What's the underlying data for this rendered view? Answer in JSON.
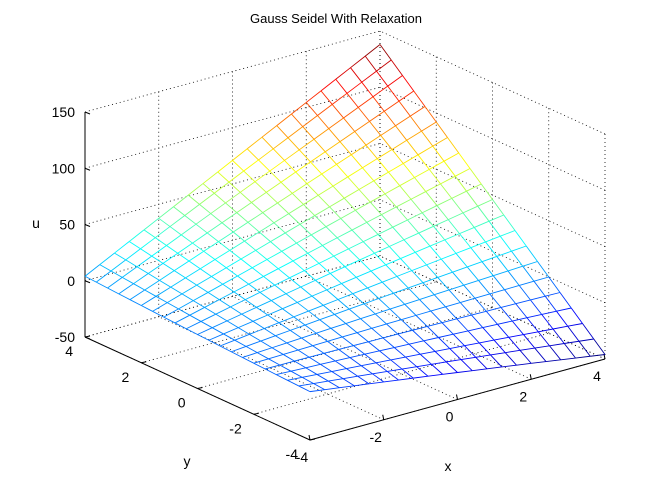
{
  "chart_data": {
    "type": "surface",
    "title": "Gauss Seidel With Relaxation",
    "xlabel": "x",
    "ylabel": "y",
    "zlabel": "u",
    "xlim": [
      -4,
      4
    ],
    "ylim": [
      -4,
      4
    ],
    "zlim": [
      -50,
      150
    ],
    "xticks": [
      -4,
      -2,
      0,
      2,
      4
    ],
    "yticks": [
      -4,
      -2,
      0,
      2,
      4
    ],
    "zticks": [
      -50,
      0,
      50,
      100,
      150
    ],
    "xtick_labels": [
      "-4",
      "-2",
      "0",
      "2",
      "4"
    ],
    "ytick_labels": [
      "-4",
      "-2",
      "0",
      "2",
      "4"
    ],
    "ztick_labels": [
      "-50",
      "0",
      "50",
      "100",
      "150"
    ],
    "grid": true,
    "box": false,
    "mesh_points_per_side": 21,
    "colormap": "jet",
    "corner_values": [
      {
        "x": -4,
        "y": -4,
        "u": -7
      },
      {
        "x": 4,
        "y": -4,
        "u": -46
      },
      {
        "x": -4,
        "y": 4,
        "u": 4
      },
      {
        "x": 4,
        "y": 4,
        "u": 138
      }
    ],
    "edge_values": {
      "y_min_edge_midpoint": {
        "x": 0,
        "y": -4,
        "u": -26
      },
      "x_min_edge_midpoint": {
        "x": -4,
        "y": 0,
        "u": -2
      }
    }
  }
}
